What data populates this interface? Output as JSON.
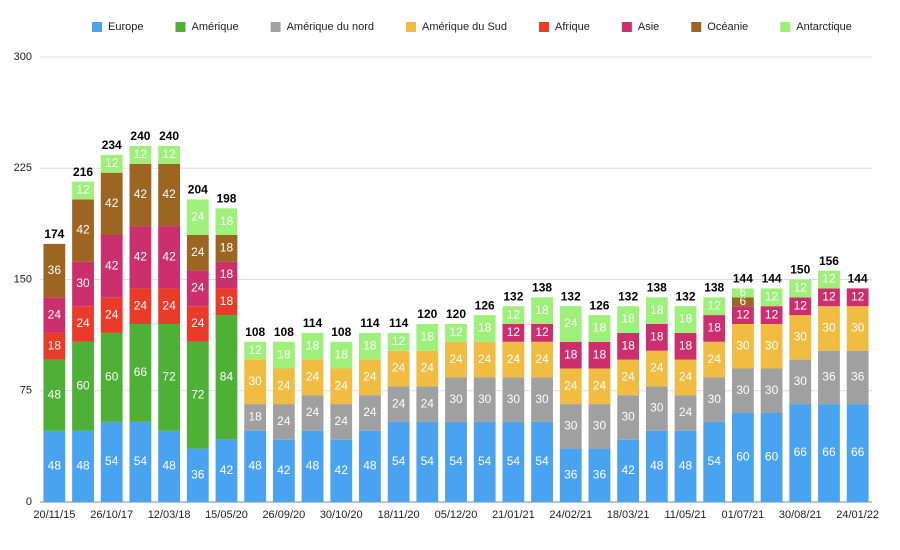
{
  "chart_data": {
    "type": "stacked_bar",
    "categories": [
      "20/11/15",
      null,
      "26/10/17",
      null,
      "12/03/18",
      null,
      "15/05/20",
      null,
      "26/09/20",
      null,
      "30/10/20",
      null,
      "18/11/20",
      null,
      "05/12/20",
      null,
      "21/01/21",
      null,
      "24/02/21",
      null,
      "18/03/21",
      null,
      "11/05/21",
      null,
      "01/07/21",
      null,
      "30/08/21",
      null,
      "24/01/22"
    ],
    "series": [
      {
        "name": "Europe",
        "color": "#4aa3f0",
        "values": [
          48,
          48,
          54,
          54,
          48,
          36,
          42,
          48,
          42,
          48,
          42,
          48,
          54,
          54,
          54,
          54,
          54,
          54,
          36,
          36,
          42,
          48,
          48,
          54,
          60,
          60,
          66,
          66,
          66
        ]
      },
      {
        "name": "Amérique",
        "color": "#4fb037",
        "values": [
          48,
          60,
          60,
          66,
          72,
          72,
          84,
          null,
          null,
          null,
          null,
          null,
          null,
          null,
          null,
          null,
          null,
          null,
          null,
          null,
          null,
          null,
          null,
          null,
          null,
          null,
          null,
          null,
          null
        ]
      },
      {
        "name": "Amérique du nord",
        "color": "#a0a0a0",
        "values": [
          null,
          null,
          null,
          null,
          null,
          null,
          null,
          18,
          24,
          24,
          24,
          24,
          24,
          24,
          30,
          30,
          30,
          30,
          30,
          30,
          30,
          30,
          24,
          30,
          30,
          30,
          30,
          36,
          36
        ]
      },
      {
        "name": "Amérique du Sud",
        "color": "#f0bc42",
        "values": [
          null,
          null,
          null,
          null,
          null,
          null,
          null,
          30,
          24,
          24,
          24,
          24,
          24,
          24,
          24,
          24,
          24,
          24,
          24,
          24,
          24,
          24,
          24,
          24,
          30,
          30,
          30,
          30,
          30
        ]
      },
      {
        "name": "Afrique",
        "color": "#ea3a2a",
        "values": [
          18,
          24,
          24,
          24,
          24,
          24,
          18,
          null,
          null,
          null,
          null,
          null,
          null,
          null,
          null,
          null,
          null,
          null,
          null,
          null,
          null,
          null,
          null,
          null,
          null,
          null,
          null,
          null,
          null
        ]
      },
      {
        "name": "Asie",
        "color": "#cc2f6e",
        "values": [
          24,
          30,
          42,
          42,
          42,
          24,
          18,
          null,
          null,
          null,
          null,
          null,
          null,
          null,
          null,
          null,
          12,
          12,
          18,
          18,
          18,
          18,
          18,
          18,
          12,
          12,
          12,
          12,
          12
        ]
      },
      {
        "name": "Océanie",
        "color": "#9c6521",
        "values": [
          36,
          42,
          42,
          42,
          42,
          24,
          18,
          null,
          null,
          null,
          null,
          null,
          null,
          null,
          null,
          null,
          null,
          null,
          null,
          null,
          null,
          null,
          null,
          null,
          6,
          null,
          null,
          null,
          null
        ]
      },
      {
        "name": "Antarctique",
        "color": "#9ef07a",
        "values": [
          null,
          12,
          12,
          12,
          12,
          24,
          18,
          12,
          18,
          18,
          18,
          18,
          12,
          18,
          12,
          18,
          12,
          18,
          24,
          18,
          18,
          18,
          18,
          12,
          6,
          12,
          12,
          12,
          null
        ]
      }
    ],
    "totals": [
      174,
      216,
      234,
      240,
      240,
      204,
      198,
      108,
      108,
      114,
      108,
      114,
      114,
      120,
      120,
      126,
      132,
      138,
      132,
      126,
      132,
      138,
      132,
      138,
      144,
      144,
      150,
      156,
      144
    ],
    "ylim": [
      0,
      300
    ],
    "yticks": [
      0,
      75,
      150,
      225,
      300
    ],
    "grid": true,
    "legend": "top"
  }
}
